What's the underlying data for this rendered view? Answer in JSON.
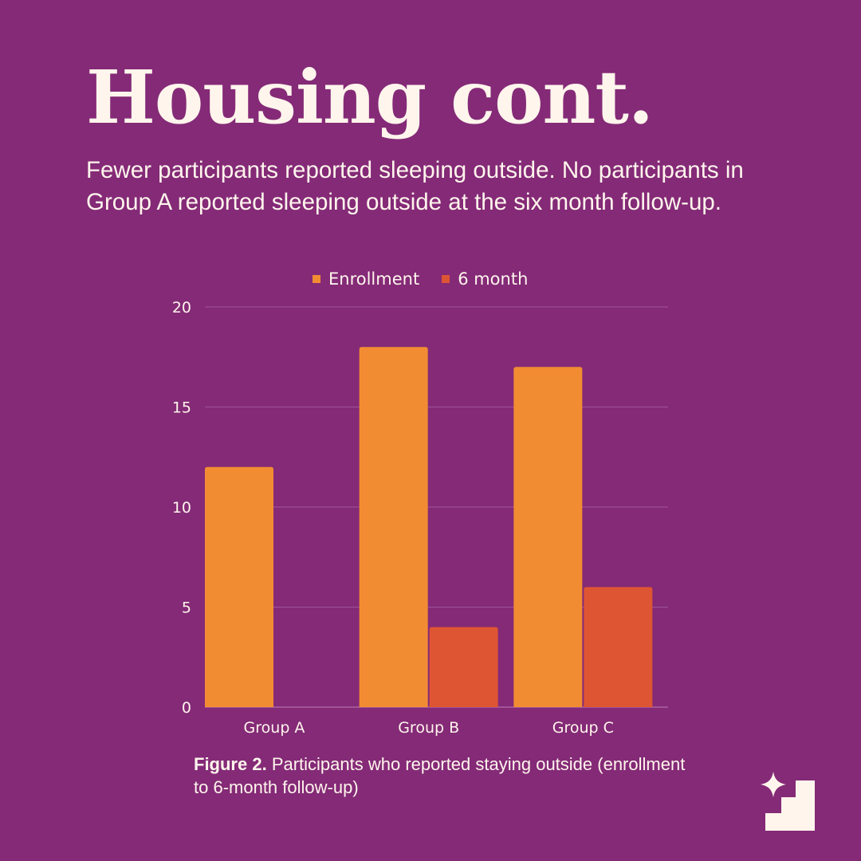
{
  "header": {
    "title": "Housing cont.",
    "subtitle": "Fewer participants reported sleeping outside. No participants in Group A reported sleeping outside at the six month follow-up."
  },
  "caption": {
    "label": "Figure 2.",
    "text": "Participants who reported staying outside (enrollment to 6-month follow-up)"
  },
  "colors": {
    "background": "#842a77",
    "text": "#fff5ec",
    "enrollment": "#f28c33",
    "six_month": "#dd5533",
    "grid": "#a0559a"
  },
  "logo": {
    "icon": "sparkle-stairs-icon"
  },
  "chart_data": {
    "type": "bar",
    "categories": [
      "Group A",
      "Group B",
      "Group C"
    ],
    "series": [
      {
        "name": "Enrollment",
        "values": [
          12,
          18,
          17
        ]
      },
      {
        "name": "6 month",
        "values": [
          0,
          4,
          6
        ]
      }
    ],
    "ylim": [
      0,
      20
    ],
    "yticks": [
      0,
      5,
      10,
      15,
      20
    ],
    "xlabel": "",
    "ylabel": "",
    "grid": true,
    "legend": "top"
  }
}
